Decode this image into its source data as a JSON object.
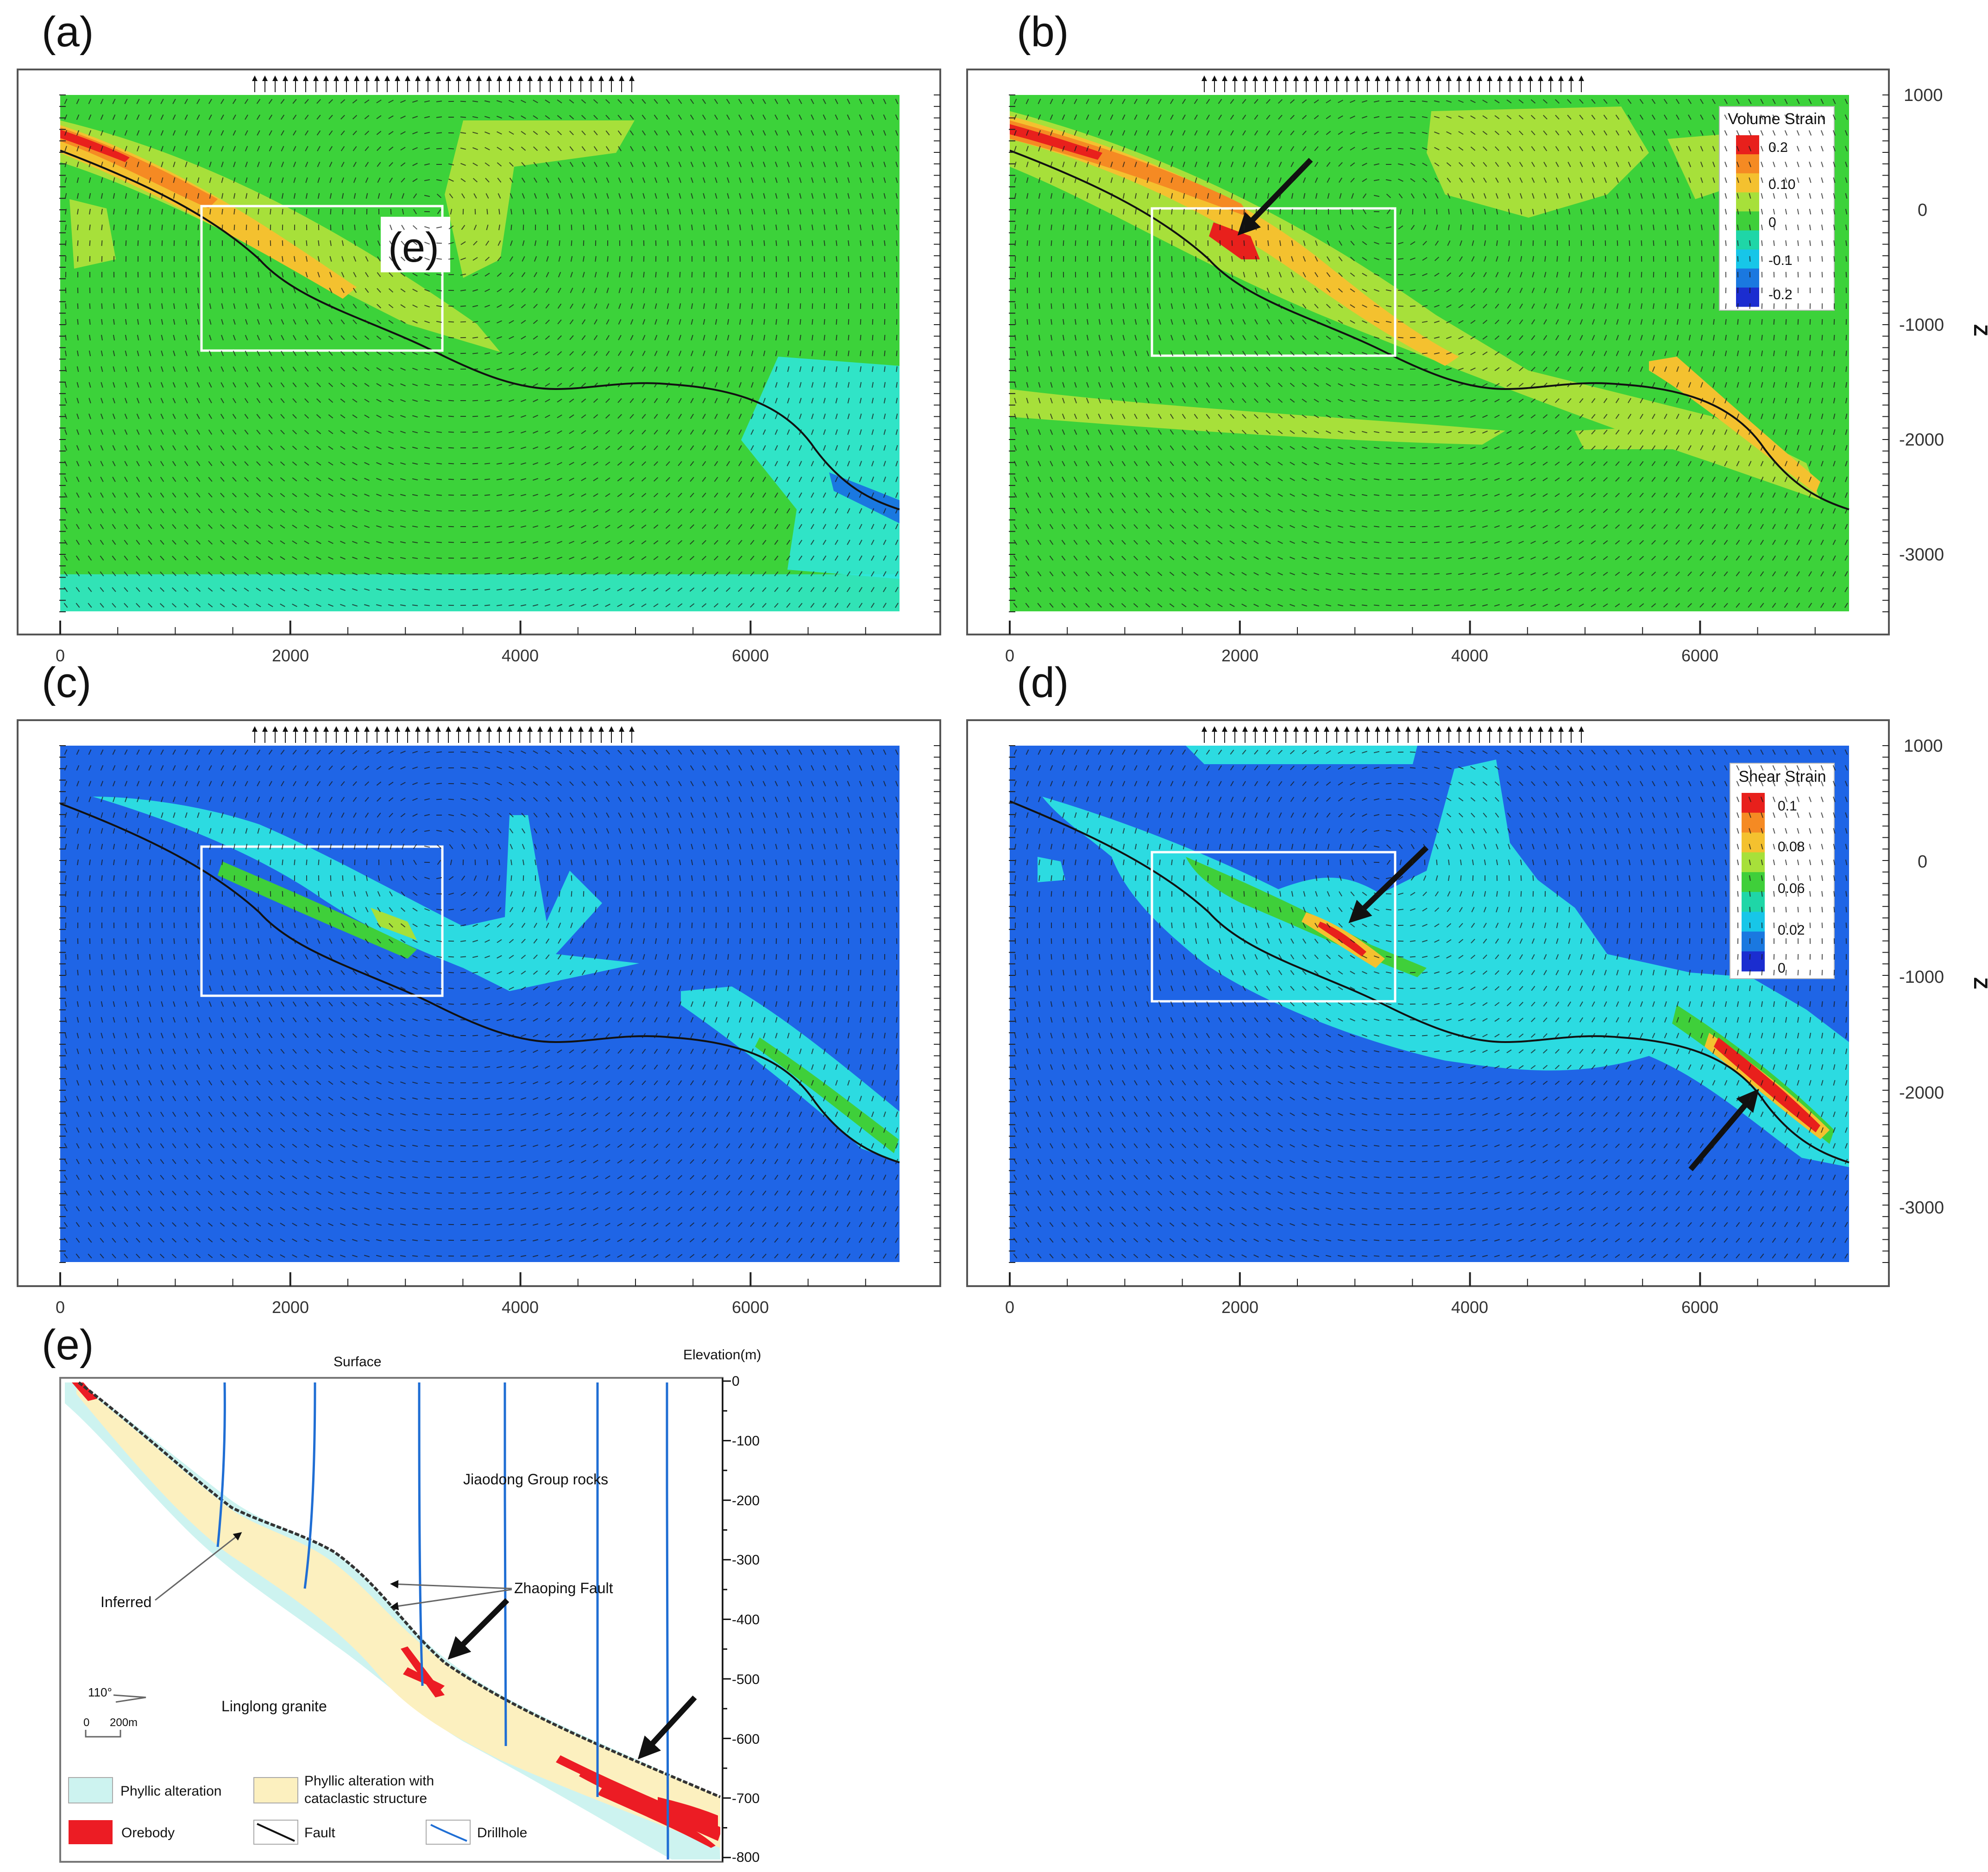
{
  "panels": [
    {
      "label": "(a)",
      "field": "volume",
      "has_e_label": true
    },
    {
      "label": "(b)",
      "field": "volume",
      "has_legend": true
    },
    {
      "label": "(c)",
      "field": "shear"
    },
    {
      "label": "(d)",
      "field": "shear",
      "has_legend": true
    }
  ],
  "x_axis": {
    "ticks": [
      "0",
      "2000",
      "4000",
      "6000"
    ],
    "range": [
      0,
      7300
    ]
  },
  "z_axis": {
    "label": "Z",
    "ticks": [
      "1000",
      "0",
      "-1000",
      "-2000",
      "-3000"
    ],
    "range": [
      -3500,
      1000
    ]
  },
  "inset_label": "(e)",
  "legends": {
    "volume": {
      "title": "Volume Strain",
      "values": [
        "0.2",
        "0.10",
        "0",
        "-0.1",
        "-0.2"
      ],
      "colors": [
        "#e8201c",
        "#f58a23",
        "#f4c12f",
        "#a7e03a",
        "#3fcf3a",
        "#1fd6a7",
        "#17c6e8",
        "#1a78e0",
        "#1b2dd0"
      ]
    },
    "shear": {
      "title": "Shear Strain",
      "values": [
        "0.1",
        "0.08",
        "0.06",
        "0.02",
        "0"
      ],
      "colors": [
        "#e8201c",
        "#f58a23",
        "#f4c12f",
        "#a7e03a",
        "#3fcf3a",
        "#1fd6a7",
        "#17c6e8",
        "#1a78e0",
        "#1b2dd0"
      ]
    }
  },
  "colors": {
    "green_field": "#3cd23a",
    "blue_field": "#1f65e6",
    "cyan": "#2ee8e0",
    "yellow": "#f4c12f",
    "orange": "#f58a23",
    "red": "#e8201c",
    "lime": "#a7e03a",
    "phyllic": "#cdf3f0",
    "cataclastic": "#fcf0bf",
    "orebody": "#ec1c24",
    "drillhole": "#1f6ed4"
  },
  "panel_e": {
    "label": "(e)",
    "surface": "Surface",
    "elevation_title": "Elevation(m)",
    "elevation_ticks": [
      "0",
      "-100",
      "-200",
      "-300",
      "-400",
      "-500",
      "-600",
      "-700",
      "-800"
    ],
    "labels": {
      "jiaodong": "Jiaodong Group rocks",
      "zhaoping": "Zhaoping Fault",
      "inferred": "Inferred",
      "linglong": "Linglong granite",
      "azimuth": "110°",
      "scale0": "0",
      "scale200": "200m"
    },
    "legend": {
      "phyllic": "Phyllic alteration",
      "cataclastic_l1": "Phyllic alteration with",
      "cataclastic_l2": "cataclastic structure",
      "orebody": "Orebody",
      "fault": "Fault",
      "drillhole": "Drillhole"
    }
  }
}
